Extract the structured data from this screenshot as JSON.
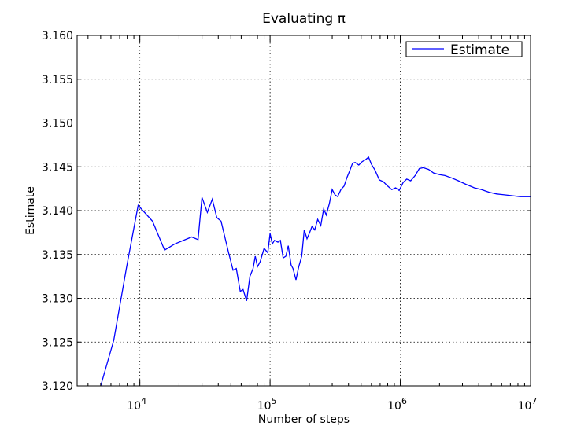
{
  "chart_data": {
    "type": "line",
    "title": "Evaluating π",
    "xlabel": "Number of steps",
    "ylabel": "Estimate",
    "x_scale": "log",
    "xlim": [
      3300,
      10000000
    ],
    "ylim": [
      3.12,
      3.16
    ],
    "grid": true,
    "legend_position": "top-right",
    "x_ticks": [
      {
        "value": 10000,
        "base": "10",
        "exp": "4"
      },
      {
        "value": 100000,
        "base": "10",
        "exp": "5"
      },
      {
        "value": 1000000,
        "base": "10",
        "exp": "6"
      },
      {
        "value": 10000000,
        "base": "10",
        "exp": "7"
      }
    ],
    "y_ticks": [
      {
        "value": 3.12,
        "label": "3.120"
      },
      {
        "value": 3.125,
        "label": "3.125"
      },
      {
        "value": 3.13,
        "label": "3.130"
      },
      {
        "value": 3.135,
        "label": "3.135"
      },
      {
        "value": 3.14,
        "label": "3.140"
      },
      {
        "value": 3.145,
        "label": "3.145"
      },
      {
        "value": 3.15,
        "label": "3.150"
      },
      {
        "value": 3.155,
        "label": "3.155"
      },
      {
        "value": 3.16,
        "label": "3.160"
      }
    ],
    "series": [
      {
        "name": "Estimate",
        "color": "#0000ff",
        "x": [
          5000,
          6300,
          7900,
          9700,
          12500,
          15500,
          18500,
          25000,
          28000,
          30000,
          33000,
          36000,
          39000,
          42000,
          48000,
          52000,
          55000,
          59000,
          62000,
          66000,
          70000,
          74000,
          77000,
          80000,
          84000,
          90000,
          96000,
          100000,
          104000,
          108000,
          115000,
          120000,
          126000,
          132000,
          138000,
          145000,
          150000,
          158000,
          166000,
          175000,
          183000,
          192000,
          200000,
          210000,
          220000,
          232000,
          245000,
          258000,
          270000,
          285000,
          300000,
          315000,
          330000,
          350000,
          370000,
          390000,
          410000,
          430000,
          450000,
          480000,
          510000,
          540000,
          570000,
          600000,
          640000,
          690000,
          740000,
          800000,
          860000,
          920000,
          980000,
          1050000,
          1120000,
          1200000,
          1300000,
          1400000,
          1500000,
          1650000,
          1800000,
          2000000,
          2200000,
          2500000,
          2800000,
          3200000,
          3700000,
          4200000,
          4800000,
          5500000,
          6300000,
          7200000,
          8300000,
          10000000
        ],
        "y": [
          3.12,
          3.1252,
          3.1335,
          3.1406,
          3.1388,
          3.1355,
          3.1362,
          3.137,
          3.1367,
          3.1415,
          3.1398,
          3.1413,
          3.1392,
          3.1388,
          3.1352,
          3.1332,
          3.1334,
          3.1308,
          3.131,
          3.1297,
          3.1325,
          3.1334,
          3.1348,
          3.1336,
          3.1342,
          3.1357,
          3.1352,
          3.1374,
          3.1362,
          3.1366,
          3.1364,
          3.1366,
          3.1346,
          3.1348,
          3.136,
          3.1338,
          3.1334,
          3.1321,
          3.1336,
          3.1348,
          3.1378,
          3.1368,
          3.1374,
          3.1382,
          3.1378,
          3.139,
          3.1383,
          3.1402,
          3.1395,
          3.1408,
          3.1424,
          3.1418,
          3.1416,
          3.1424,
          3.1428,
          3.1438,
          3.1446,
          3.1454,
          3.1455,
          3.1452,
          3.1456,
          3.1458,
          3.1461,
          3.1453,
          3.1446,
          3.1435,
          3.1433,
          3.1428,
          3.1424,
          3.1426,
          3.1423,
          3.1432,
          3.1436,
          3.1434,
          3.144,
          3.1448,
          3.1449,
          3.1447,
          3.1443,
          3.1441,
          3.144,
          3.1437,
          3.1434,
          3.143,
          3.1426,
          3.1424,
          3.1421,
          3.1419,
          3.1418,
          3.1417,
          3.1416,
          3.1416
        ]
      }
    ]
  }
}
